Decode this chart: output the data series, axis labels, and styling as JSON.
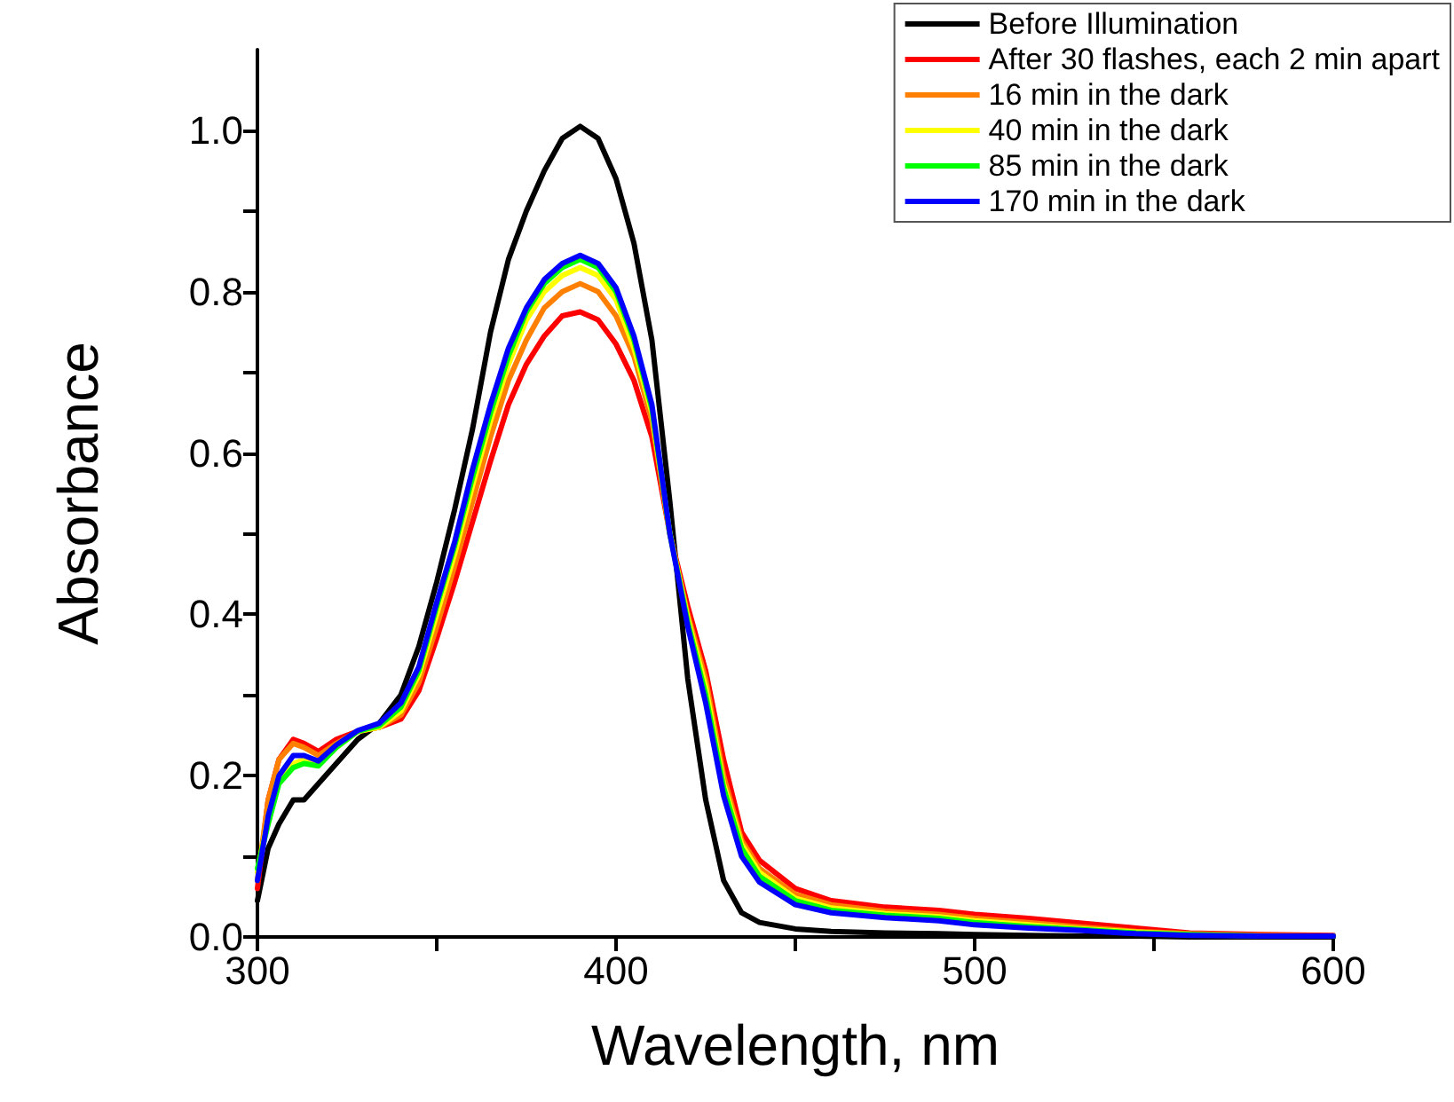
{
  "chart_data": {
    "type": "line",
    "xlabel": "Wavelength, nm",
    "ylabel": "Absorbance",
    "x": [
      300,
      303,
      306,
      310,
      313,
      317,
      322,
      328,
      334,
      340,
      345,
      350,
      355,
      360,
      365,
      370,
      375,
      380,
      385,
      390,
      395,
      400,
      405,
      410,
      415,
      420,
      425,
      430,
      435,
      440,
      450,
      460,
      475,
      490,
      500,
      515,
      530,
      545,
      560,
      580,
      600
    ],
    "series": [
      {
        "name": "Before Illumination",
        "color": "#000000",
        "values": [
          0.045,
          0.11,
          0.14,
          0.17,
          0.17,
          0.19,
          0.215,
          0.245,
          0.265,
          0.3,
          0.36,
          0.44,
          0.53,
          0.63,
          0.75,
          0.84,
          0.9,
          0.95,
          0.99,
          1.005,
          0.99,
          0.94,
          0.86,
          0.74,
          0.54,
          0.32,
          0.17,
          0.07,
          0.03,
          0.018,
          0.01,
          0.007,
          0.005,
          0.004,
          0.003,
          0.002,
          0.001,
          0.001,
          0,
          0,
          0
        ]
      },
      {
        "name": "After 30 flashes, each 2 min apart",
        "color": "#ff0000",
        "values": [
          0.06,
          0.17,
          0.22,
          0.245,
          0.24,
          0.23,
          0.245,
          0.255,
          0.26,
          0.27,
          0.305,
          0.37,
          0.44,
          0.515,
          0.59,
          0.66,
          0.71,
          0.745,
          0.77,
          0.775,
          0.765,
          0.735,
          0.69,
          0.62,
          0.5,
          0.41,
          0.33,
          0.22,
          0.13,
          0.095,
          0.06,
          0.045,
          0.037,
          0.033,
          0.028,
          0.023,
          0.017,
          0.011,
          0.005,
          0.003,
          0.002
        ]
      },
      {
        "name": "16 min in the dark",
        "color": "#ff8000",
        "values": [
          0.07,
          0.17,
          0.22,
          0.24,
          0.235,
          0.225,
          0.24,
          0.255,
          0.26,
          0.275,
          0.315,
          0.385,
          0.46,
          0.54,
          0.62,
          0.69,
          0.74,
          0.78,
          0.8,
          0.81,
          0.8,
          0.77,
          0.72,
          0.64,
          0.5,
          0.4,
          0.32,
          0.2,
          0.12,
          0.085,
          0.053,
          0.04,
          0.032,
          0.028,
          0.023,
          0.018,
          0.012,
          0.007,
          0.004,
          0.002,
          0.001
        ]
      },
      {
        "name": "40 min in the dark",
        "color": "#ffff00",
        "values": [
          0.08,
          0.15,
          0.2,
          0.215,
          0.22,
          0.215,
          0.235,
          0.255,
          0.26,
          0.28,
          0.325,
          0.4,
          0.475,
          0.56,
          0.64,
          0.71,
          0.765,
          0.8,
          0.82,
          0.83,
          0.82,
          0.79,
          0.73,
          0.65,
          0.5,
          0.395,
          0.31,
          0.19,
          0.115,
          0.08,
          0.048,
          0.036,
          0.029,
          0.025,
          0.02,
          0.015,
          0.01,
          0.006,
          0.003,
          null,
          null
        ]
      },
      {
        "name": "85 min in the dark",
        "color": "#00ff00",
        "values": [
          0.085,
          0.14,
          0.19,
          0.21,
          0.215,
          0.212,
          0.235,
          0.255,
          0.262,
          0.285,
          0.33,
          0.41,
          0.485,
          0.57,
          0.65,
          0.72,
          0.775,
          0.81,
          0.83,
          0.84,
          0.83,
          0.8,
          0.74,
          0.655,
          0.5,
          0.39,
          0.3,
          0.185,
          0.11,
          0.075,
          0.045,
          0.033,
          0.027,
          0.023,
          0.018,
          0.013,
          0.009,
          0.005,
          0.003,
          0.001,
          0.001
        ]
      },
      {
        "name": "170 min in the dark",
        "color": "#0000ff",
        "values": [
          0.07,
          0.15,
          0.2,
          0.225,
          0.225,
          0.218,
          0.238,
          0.256,
          0.265,
          0.29,
          0.335,
          0.415,
          0.49,
          0.58,
          0.66,
          0.73,
          0.78,
          0.815,
          0.835,
          0.845,
          0.835,
          0.805,
          0.745,
          0.66,
          0.5,
          0.385,
          0.29,
          0.175,
          0.1,
          0.068,
          0.04,
          0.03,
          0.024,
          0.02,
          0.015,
          0.011,
          0.008,
          0.004,
          0.002,
          0.001,
          0.001
        ]
      }
    ],
    "xlim": [
      300,
      600
    ],
    "xticks": [
      300,
      {
        "value": 350,
        "label": null
      },
      400,
      {
        "value": 450,
        "label": null
      },
      500,
      {
        "value": 550,
        "label": null
      },
      600
    ],
    "ylim": [
      0,
      1.1
    ],
    "yticks": [
      "0.0",
      {
        "value": 0.1,
        "label": null
      },
      {
        "value": 0.2,
        "label": "0.2"
      },
      {
        "value": 0.3,
        "label": null
      },
      {
        "value": 0.4,
        "label": "0.4"
      },
      {
        "value": 0.5,
        "label": null
      },
      {
        "value": 0.6,
        "label": "0.6"
      },
      {
        "value": 0.7,
        "label": null
      },
      {
        "value": 0.8,
        "label": "0.8"
      },
      {
        "value": 0.9,
        "label": null
      },
      {
        "value": 1.0,
        "label": "1.0"
      }
    ],
    "grid": false,
    "legend": "top right",
    "marker": "none",
    "line_style": "solid"
  }
}
